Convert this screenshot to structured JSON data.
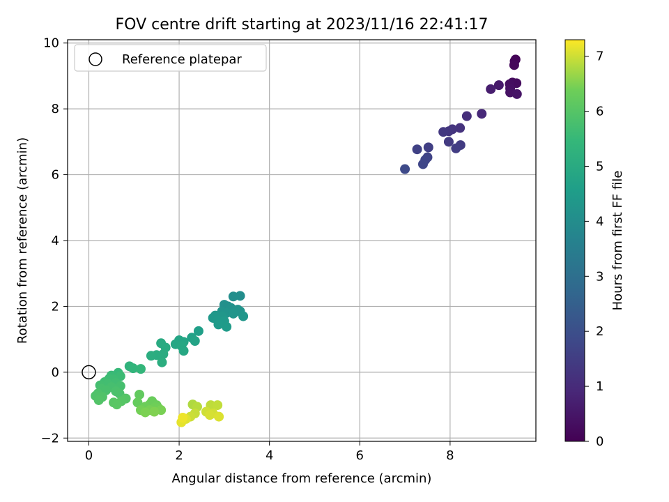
{
  "chart_data": {
    "type": "scatter",
    "title": "FOV centre drift starting at 2023/11/16 22:41:17",
    "xlabel": "Angular distance from reference (arcmin)",
    "ylabel": "Rotation from reference (arcmin)",
    "xlim": [
      -0.47,
      9.9
    ],
    "ylim": [
      -2.1,
      10.1
    ],
    "xticks": [
      0,
      2,
      4,
      6,
      8
    ],
    "yticks": [
      -2,
      0,
      2,
      4,
      6,
      8,
      10
    ],
    "grid": true,
    "legend": {
      "position": "top-left",
      "label": "Reference platepar",
      "marker": "open-circle"
    },
    "reference_point": {
      "x": 0,
      "y": 0
    },
    "colorbar": {
      "label": "Hours from first FF file",
      "colormap": "viridis",
      "range": [
        0,
        7.3
      ],
      "ticks": [
        0,
        1,
        2,
        3,
        4,
        5,
        6,
        7
      ]
    },
    "points": [
      {
        "x": 9.45,
        "y": 9.5,
        "c": 0.05
      },
      {
        "x": 9.43,
        "y": 9.45,
        "c": 0.1
      },
      {
        "x": 9.42,
        "y": 9.33,
        "c": 0.15
      },
      {
        "x": 9.38,
        "y": 8.8,
        "c": 0.2
      },
      {
        "x": 9.47,
        "y": 8.78,
        "c": 0.25
      },
      {
        "x": 9.32,
        "y": 8.75,
        "c": 0.3
      },
      {
        "x": 9.33,
        "y": 8.62,
        "c": 0.35
      },
      {
        "x": 9.33,
        "y": 8.5,
        "c": 0.4
      },
      {
        "x": 9.48,
        "y": 8.45,
        "c": 0.45
      },
      {
        "x": 9.08,
        "y": 8.72,
        "c": 0.55
      },
      {
        "x": 8.9,
        "y": 8.6,
        "c": 0.65
      },
      {
        "x": 8.7,
        "y": 7.85,
        "c": 0.95
      },
      {
        "x": 8.37,
        "y": 7.78,
        "c": 1.1
      },
      {
        "x": 8.22,
        "y": 7.42,
        "c": 1.2
      },
      {
        "x": 8.05,
        "y": 7.38,
        "c": 1.25
      },
      {
        "x": 7.97,
        "y": 7.32,
        "c": 1.3
      },
      {
        "x": 7.85,
        "y": 7.3,
        "c": 1.35
      },
      {
        "x": 7.97,
        "y": 7.0,
        "c": 1.4
      },
      {
        "x": 8.23,
        "y": 6.9,
        "c": 1.45
      },
      {
        "x": 8.13,
        "y": 6.8,
        "c": 1.5
      },
      {
        "x": 7.52,
        "y": 6.83,
        "c": 1.55
      },
      {
        "x": 7.27,
        "y": 6.77,
        "c": 1.6
      },
      {
        "x": 7.5,
        "y": 6.53,
        "c": 1.65
      },
      {
        "x": 7.45,
        "y": 6.45,
        "c": 1.7
      },
      {
        "x": 7.4,
        "y": 6.32,
        "c": 1.75
      },
      {
        "x": 7.0,
        "y": 6.17,
        "c": 1.85
      },
      {
        "x": 3.35,
        "y": 2.32,
        "c": 4.0
      },
      {
        "x": 3.2,
        "y": 2.3,
        "c": 4.05
      },
      {
        "x": 3.0,
        "y": 2.05,
        "c": 4.1
      },
      {
        "x": 3.08,
        "y": 2.0,
        "c": 4.12
      },
      {
        "x": 3.15,
        "y": 1.95,
        "c": 4.15
      },
      {
        "x": 3.3,
        "y": 1.9,
        "c": 4.18
      },
      {
        "x": 3.35,
        "y": 1.85,
        "c": 4.2
      },
      {
        "x": 2.95,
        "y": 1.85,
        "c": 4.22
      },
      {
        "x": 3.05,
        "y": 1.8,
        "c": 4.25
      },
      {
        "x": 3.2,
        "y": 1.78,
        "c": 4.28
      },
      {
        "x": 3.42,
        "y": 1.7,
        "c": 4.3
      },
      {
        "x": 2.95,
        "y": 1.7,
        "c": 4.32
      },
      {
        "x": 2.8,
        "y": 1.72,
        "c": 4.35
      },
      {
        "x": 2.75,
        "y": 1.65,
        "c": 4.38
      },
      {
        "x": 2.85,
        "y": 1.58,
        "c": 4.4
      },
      {
        "x": 3.0,
        "y": 1.55,
        "c": 4.42
      },
      {
        "x": 2.87,
        "y": 1.45,
        "c": 4.45
      },
      {
        "x": 3.05,
        "y": 1.38,
        "c": 4.48
      },
      {
        "x": 2.43,
        "y": 1.25,
        "c": 4.6
      },
      {
        "x": 2.28,
        "y": 1.05,
        "c": 4.7
      },
      {
        "x": 2.35,
        "y": 0.95,
        "c": 4.75
      },
      {
        "x": 2.0,
        "y": 0.97,
        "c": 4.8
      },
      {
        "x": 2.1,
        "y": 0.92,
        "c": 4.82
      },
      {
        "x": 1.92,
        "y": 0.85,
        "c": 4.85
      },
      {
        "x": 2.05,
        "y": 0.8,
        "c": 4.88
      },
      {
        "x": 2.1,
        "y": 0.65,
        "c": 4.9
      },
      {
        "x": 1.6,
        "y": 0.88,
        "c": 5.0
      },
      {
        "x": 1.7,
        "y": 0.75,
        "c": 5.02
      },
      {
        "x": 1.65,
        "y": 0.55,
        "c": 5.05
      },
      {
        "x": 1.5,
        "y": 0.52,
        "c": 5.08
      },
      {
        "x": 1.38,
        "y": 0.5,
        "c": 5.1
      },
      {
        "x": 1.62,
        "y": 0.3,
        "c": 5.12
      },
      {
        "x": 0.9,
        "y": 0.18,
        "c": 5.3
      },
      {
        "x": 0.98,
        "y": 0.12,
        "c": 5.35
      },
      {
        "x": 1.15,
        "y": 0.1,
        "c": 5.4
      },
      {
        "x": 0.65,
        "y": -0.02,
        "c": 5.5
      },
      {
        "x": 0.5,
        "y": -0.1,
        "c": 5.55
      },
      {
        "x": 0.7,
        "y": -0.12,
        "c": 5.6
      },
      {
        "x": 0.45,
        "y": -0.2,
        "c": 5.62
      },
      {
        "x": 0.55,
        "y": -0.22,
        "c": 5.64
      },
      {
        "x": 0.35,
        "y": -0.3,
        "c": 5.66
      },
      {
        "x": 0.6,
        "y": -0.32,
        "c": 5.68
      },
      {
        "x": 0.42,
        "y": -0.35,
        "c": 5.7
      },
      {
        "x": 0.25,
        "y": -0.4,
        "c": 5.72
      },
      {
        "x": 0.7,
        "y": -0.42,
        "c": 5.74
      },
      {
        "x": 0.5,
        "y": -0.45,
        "c": 5.76
      },
      {
        "x": 0.28,
        "y": -0.5,
        "c": 5.78
      },
      {
        "x": 0.38,
        "y": -0.55,
        "c": 5.8
      },
      {
        "x": 0.6,
        "y": -0.58,
        "c": 5.82
      },
      {
        "x": 0.68,
        "y": -0.65,
        "c": 5.85
      },
      {
        "x": 0.2,
        "y": -0.65,
        "c": 5.87
      },
      {
        "x": 0.15,
        "y": -0.72,
        "c": 5.9
      },
      {
        "x": 0.3,
        "y": -0.75,
        "c": 5.92
      },
      {
        "x": 0.22,
        "y": -0.85,
        "c": 5.95
      },
      {
        "x": 0.82,
        "y": -0.8,
        "c": 6.0
      },
      {
        "x": 0.72,
        "y": -0.88,
        "c": 6.02
      },
      {
        "x": 0.55,
        "y": -0.92,
        "c": 6.04
      },
      {
        "x": 0.62,
        "y": -0.98,
        "c": 6.06
      },
      {
        "x": 1.12,
        "y": -0.68,
        "c": 6.2
      },
      {
        "x": 1.08,
        "y": -0.92,
        "c": 6.25
      },
      {
        "x": 1.4,
        "y": -0.88,
        "c": 6.3
      },
      {
        "x": 1.35,
        "y": -0.98,
        "c": 6.32
      },
      {
        "x": 1.5,
        "y": -1.0,
        "c": 6.34
      },
      {
        "x": 1.25,
        "y": -1.05,
        "c": 6.36
      },
      {
        "x": 1.45,
        "y": -1.08,
        "c": 6.38
      },
      {
        "x": 1.55,
        "y": -1.1,
        "c": 6.4
      },
      {
        "x": 1.15,
        "y": -1.15,
        "c": 6.42
      },
      {
        "x": 1.35,
        "y": -1.15,
        "c": 6.44
      },
      {
        "x": 1.6,
        "y": -1.15,
        "c": 6.46
      },
      {
        "x": 1.25,
        "y": -1.22,
        "c": 6.48
      },
      {
        "x": 1.45,
        "y": -1.2,
        "c": 6.5
      },
      {
        "x": 2.3,
        "y": -0.98,
        "c": 6.8
      },
      {
        "x": 2.4,
        "y": -1.05,
        "c": 6.85
      },
      {
        "x": 2.7,
        "y": -1.0,
        "c": 6.9
      },
      {
        "x": 2.85,
        "y": -1.0,
        "c": 6.92
      },
      {
        "x": 2.35,
        "y": -1.25,
        "c": 6.95
      },
      {
        "x": 2.25,
        "y": -1.35,
        "c": 6.98
      },
      {
        "x": 2.6,
        "y": -1.2,
        "c": 7.0
      },
      {
        "x": 2.75,
        "y": -1.25,
        "c": 7.02
      },
      {
        "x": 2.68,
        "y": -1.3,
        "c": 7.05
      },
      {
        "x": 2.88,
        "y": -1.35,
        "c": 7.08
      },
      {
        "x": 2.15,
        "y": -1.42,
        "c": 7.1
      },
      {
        "x": 2.05,
        "y": -1.52,
        "c": 7.15
      },
      {
        "x": 2.08,
        "y": -1.38,
        "c": 7.2
      }
    ]
  }
}
